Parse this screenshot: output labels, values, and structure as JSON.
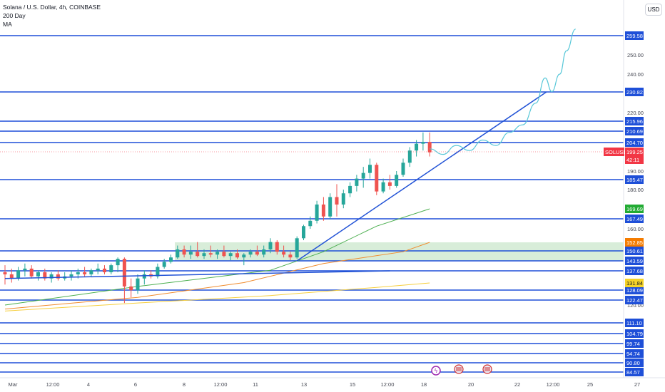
{
  "header": {
    "title": "Solana / U.S. Dollar, 4h, COINBASE",
    "indicator_line1": "200 Day",
    "indicator_line2": "MA",
    "currency_button": "USD"
  },
  "colors": {
    "level_line": "#1e4fd8",
    "trendline": "#2152d6",
    "up_candle": "#26a69a",
    "down_candle": "#ef5350",
    "ma_green": "#4caf50",
    "ma_orange": "#f08c2e",
    "ma_yellow": "#f6cf3e",
    "projection": "#57c7d8",
    "zone_fill": "#c8e6c9"
  },
  "chart_data": {
    "type": "candlestick",
    "symbol": "SOLUSD",
    "timeframe": "4h",
    "exchange": "COINBASE",
    "x_ticks": [
      "Mar",
      "12:00",
      "4",
      "6",
      "8",
      "12:00",
      "11",
      "13",
      "15",
      "12:00",
      "18",
      "20",
      "22",
      "12:00",
      "25",
      "27"
    ],
    "y_ticks": [
      250.0,
      240.0,
      220.0,
      190.0,
      180.0,
      160.0,
      120.0
    ],
    "y_tick_labels": [
      "250.00",
      "240.00",
      "220.00",
      "190.00",
      "180.00",
      "160.00",
      "120.00"
    ],
    "horizontal_levels": [
      259.58,
      230.82,
      215.96,
      210.69,
      204.7,
      185.47,
      167.49,
      150.61,
      143.59,
      137.68,
      128.09,
      122.47,
      111.1,
      104.79,
      99.74,
      94.74,
      90.8,
      84.57
    ],
    "highlighted_labels": [
      {
        "text": "SOLUSD",
        "value": 199.25,
        "color": "#f23645"
      },
      {
        "text": "199.25",
        "value": 199.25,
        "color": "#f23645"
      },
      {
        "text": "42:11",
        "value": 199.25,
        "color": "#f23645"
      },
      {
        "text": "169.69",
        "value": 169.69,
        "color": "#22ab33"
      },
      {
        "text": "152.85",
        "value": 152.85,
        "color": "#f57c00"
      },
      {
        "text": "131.84",
        "value": 131.84,
        "color": "#f5d327"
      }
    ],
    "current_price": 199.25,
    "consolidation_zone": [
      143.59,
      152.85
    ],
    "candles": [
      {
        "t": 0,
        "o": 137,
        "h": 141,
        "l": 131,
        "c": 136
      },
      {
        "t": 0.5,
        "o": 136,
        "h": 139,
        "l": 132,
        "c": 134
      },
      {
        "t": 1,
        "o": 134,
        "h": 140,
        "l": 133,
        "c": 138
      },
      {
        "t": 1.5,
        "o": 138,
        "h": 142,
        "l": 135,
        "c": 139
      },
      {
        "t": 2,
        "o": 139,
        "h": 141,
        "l": 134,
        "c": 135
      },
      {
        "t": 2.5,
        "o": 135,
        "h": 138,
        "l": 133,
        "c": 137
      },
      {
        "t": 3,
        "o": 137,
        "h": 139,
        "l": 133,
        "c": 134
      },
      {
        "t": 3.5,
        "o": 134,
        "h": 137,
        "l": 132,
        "c": 136
      },
      {
        "t": 4,
        "o": 136,
        "h": 138,
        "l": 133,
        "c": 134
      },
      {
        "t": 4.5,
        "o": 134,
        "h": 137,
        "l": 133,
        "c": 135
      },
      {
        "t": 5,
        "o": 135,
        "h": 138,
        "l": 133,
        "c": 136
      },
      {
        "t": 5.5,
        "o": 136,
        "h": 139,
        "l": 134,
        "c": 137
      },
      {
        "t": 6,
        "o": 137,
        "h": 140,
        "l": 135,
        "c": 136
      },
      {
        "t": 6.5,
        "o": 136,
        "h": 139,
        "l": 135,
        "c": 138
      },
      {
        "t": 7,
        "o": 138,
        "h": 142,
        "l": 136,
        "c": 139
      },
      {
        "t": 7.5,
        "o": 139,
        "h": 141,
        "l": 136,
        "c": 137
      },
      {
        "t": 8,
        "o": 137,
        "h": 142,
        "l": 136,
        "c": 141
      },
      {
        "t": 8.5,
        "o": 141,
        "h": 146,
        "l": 137,
        "c": 145
      },
      {
        "t": 9,
        "o": 145,
        "h": 146,
        "l": 121,
        "c": 130
      },
      {
        "t": 9.5,
        "o": 130,
        "h": 134,
        "l": 124,
        "c": 128
      },
      {
        "t": 10,
        "o": 128,
        "h": 136,
        "l": 126,
        "c": 134
      },
      {
        "t": 10.5,
        "o": 134,
        "h": 138,
        "l": 131,
        "c": 136
      },
      {
        "t": 11,
        "o": 136,
        "h": 138,
        "l": 134,
        "c": 135
      },
      {
        "t": 11.5,
        "o": 135,
        "h": 142,
        "l": 134,
        "c": 140
      },
      {
        "t": 12,
        "o": 140,
        "h": 145,
        "l": 139,
        "c": 143
      },
      {
        "t": 12.5,
        "o": 143,
        "h": 148,
        "l": 142,
        "c": 146
      },
      {
        "t": 13,
        "o": 146,
        "h": 152,
        "l": 145,
        "c": 151
      },
      {
        "t": 13.5,
        "o": 151,
        "h": 152,
        "l": 146,
        "c": 148
      },
      {
        "t": 14,
        "o": 148,
        "h": 152,
        "l": 145,
        "c": 150
      },
      {
        "t": 14.5,
        "o": 150,
        "h": 153,
        "l": 146,
        "c": 147
      },
      {
        "t": 15,
        "o": 147,
        "h": 151,
        "l": 145,
        "c": 149
      },
      {
        "t": 15.5,
        "o": 149,
        "h": 152,
        "l": 146,
        "c": 148
      },
      {
        "t": 16,
        "o": 148,
        "h": 151,
        "l": 145,
        "c": 150
      },
      {
        "t": 16.5,
        "o": 150,
        "h": 152,
        "l": 146,
        "c": 147
      },
      {
        "t": 17,
        "o": 147,
        "h": 150,
        "l": 144,
        "c": 149
      },
      {
        "t": 17.5,
        "o": 149,
        "h": 151,
        "l": 145,
        "c": 146
      },
      {
        "t": 18,
        "o": 146,
        "h": 149,
        "l": 141,
        "c": 148
      },
      {
        "t": 18.5,
        "o": 148,
        "h": 151,
        "l": 146,
        "c": 150
      },
      {
        "t": 19,
        "o": 150,
        "h": 152,
        "l": 147,
        "c": 148
      },
      {
        "t": 19.5,
        "o": 148,
        "h": 152,
        "l": 146,
        "c": 151
      },
      {
        "t": 20,
        "o": 151,
        "h": 155,
        "l": 149,
        "c": 153
      },
      {
        "t": 20.5,
        "o": 153,
        "h": 154,
        "l": 148,
        "c": 150
      },
      {
        "t": 21,
        "o": 150,
        "h": 152,
        "l": 146,
        "c": 148
      },
      {
        "t": 21.5,
        "o": 148,
        "h": 150,
        "l": 144,
        "c": 146
      },
      {
        "t": 22,
        "o": 146,
        "h": 156,
        "l": 145,
        "c": 155
      },
      {
        "t": 22.5,
        "o": 155,
        "h": 163,
        "l": 154,
        "c": 162
      },
      {
        "t": 23,
        "o": 162,
        "h": 168,
        "l": 160,
        "c": 166
      },
      {
        "t": 23.5,
        "o": 166,
        "h": 174,
        "l": 164,
        "c": 172
      },
      {
        "t": 24,
        "o": 172,
        "h": 176,
        "l": 166,
        "c": 168
      },
      {
        "t": 24.5,
        "o": 168,
        "h": 178,
        "l": 167,
        "c": 176
      },
      {
        "t": 25,
        "o": 176,
        "h": 183,
        "l": 168,
        "c": 172
      },
      {
        "t": 25.5,
        "o": 172,
        "h": 180,
        "l": 170,
        "c": 178
      },
      {
        "t": 26,
        "o": 178,
        "h": 184,
        "l": 176,
        "c": 182
      },
      {
        "t": 26.5,
        "o": 182,
        "h": 188,
        "l": 179,
        "c": 186
      },
      {
        "t": 27,
        "o": 186,
        "h": 192,
        "l": 181,
        "c": 189
      },
      {
        "t": 27.5,
        "o": 189,
        "h": 196,
        "l": 186,
        "c": 193
      },
      {
        "t": 28,
        "o": 193,
        "h": 194,
        "l": 177,
        "c": 179
      },
      {
        "t": 28.5,
        "o": 179,
        "h": 186,
        "l": 178,
        "c": 184
      },
      {
        "t": 29,
        "o": 184,
        "h": 188,
        "l": 180,
        "c": 182
      },
      {
        "t": 29.5,
        "o": 182,
        "h": 190,
        "l": 181,
        "c": 188
      },
      {
        "t": 30,
        "o": 188,
        "h": 196,
        "l": 187,
        "c": 194
      },
      {
        "t": 30.5,
        "o": 194,
        "h": 202,
        "l": 192,
        "c": 200
      },
      {
        "t": 31,
        "o": 200,
        "h": 206,
        "l": 197,
        "c": 204
      },
      {
        "t": 31.5,
        "o": 204,
        "h": 210,
        "l": 200,
        "c": 205
      },
      {
        "t": 32,
        "o": 205,
        "h": 210,
        "l": 197,
        "c": 199
      }
    ],
    "moving_averages": [
      {
        "color": "#4caf50",
        "points": [
          [
            0,
            120
          ],
          [
            10,
            130
          ],
          [
            20,
            138
          ],
          [
            24,
            150
          ],
          [
            28,
            162
          ],
          [
            32,
            169.69
          ]
        ]
      },
      {
        "color": "#f08c2e",
        "points": [
          [
            0,
            118
          ],
          [
            10,
            124
          ],
          [
            18,
            132
          ],
          [
            24,
            142
          ],
          [
            30,
            150
          ],
          [
            32,
            152.85
          ]
        ]
      },
      {
        "color": "#f6cf3e",
        "points": [
          [
            0,
            117
          ],
          [
            10,
            121
          ],
          [
            20,
            125
          ],
          [
            28,
            129.5
          ],
          [
            32,
            131.84
          ]
        ]
      }
    ],
    "trendlines": [
      {
        "from": [
          0,
          134
        ],
        "to": [
          29,
          137.68
        ]
      },
      {
        "from": [
          22,
          143.59
        ],
        "to": [
          40.8,
          230.82
        ]
      }
    ],
    "projection_path": [
      [
        32,
        201
      ],
      [
        33,
        198
      ],
      [
        34,
        203
      ],
      [
        35,
        200
      ],
      [
        36,
        206
      ],
      [
        37,
        203
      ],
      [
        38,
        210
      ],
      [
        39,
        214
      ],
      [
        40,
        225
      ],
      [
        40.7,
        238
      ],
      [
        41.2,
        231
      ],
      [
        41.8,
        240
      ],
      [
        42.3,
        252
      ],
      [
        43,
        263
      ]
    ]
  }
}
